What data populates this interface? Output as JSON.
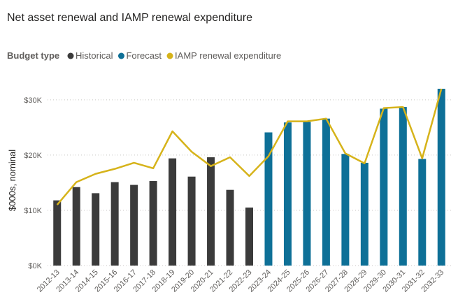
{
  "chart_data": {
    "type": "combo",
    "title": "Net asset renewal and IAMP renewal expenditure",
    "legend_title": "Budget type",
    "y_label": "$000s, nominal",
    "categories": [
      "2012-13",
      "2013-14",
      "2014-15",
      "2015-16",
      "2016-17",
      "2017-18",
      "2018-19",
      "2019-20",
      "2020-21",
      "2021-22",
      "2022-23",
      "2023-24",
      "2024-25",
      "2025-26",
      "2026-27",
      "2027-28",
      "2028-29",
      "2029-30",
      "2030-31",
      "2031-32",
      "2032-33"
    ],
    "series": [
      {
        "name": "Historical",
        "mark": "bar",
        "color": "#3b3b3b",
        "values": [
          11800,
          14200,
          13100,
          15100,
          14600,
          15300,
          19400,
          16100,
          19600,
          13700,
          10500,
          null,
          null,
          null,
          null,
          null,
          null,
          null,
          null,
          null,
          null
        ]
      },
      {
        "name": "Forecast",
        "mark": "bar",
        "color": "#0e7097",
        "values": [
          null,
          null,
          null,
          null,
          null,
          null,
          null,
          null,
          null,
          null,
          null,
          24100,
          25900,
          26000,
          26600,
          20200,
          18600,
          28400,
          28700,
          19300,
          32000
        ]
      },
      {
        "name": "IAMP renewal expenditure",
        "mark": "line",
        "color": "#d6b31a",
        "values": [
          11000,
          15100,
          16600,
          17500,
          18600,
          17600,
          24300,
          20600,
          18000,
          19600,
          16200,
          19800,
          26100,
          26100,
          26600,
          20300,
          18500,
          28500,
          28700,
          19400,
          32000
        ]
      }
    ],
    "ylim": [
      0,
      32000
    ],
    "yticks": [
      {
        "value": 0,
        "label": "$0K"
      },
      {
        "value": 10000,
        "label": "$10K"
      },
      {
        "value": 20000,
        "label": "$20K"
      },
      {
        "value": 30000,
        "label": "$30K"
      }
    ],
    "grid": true
  }
}
